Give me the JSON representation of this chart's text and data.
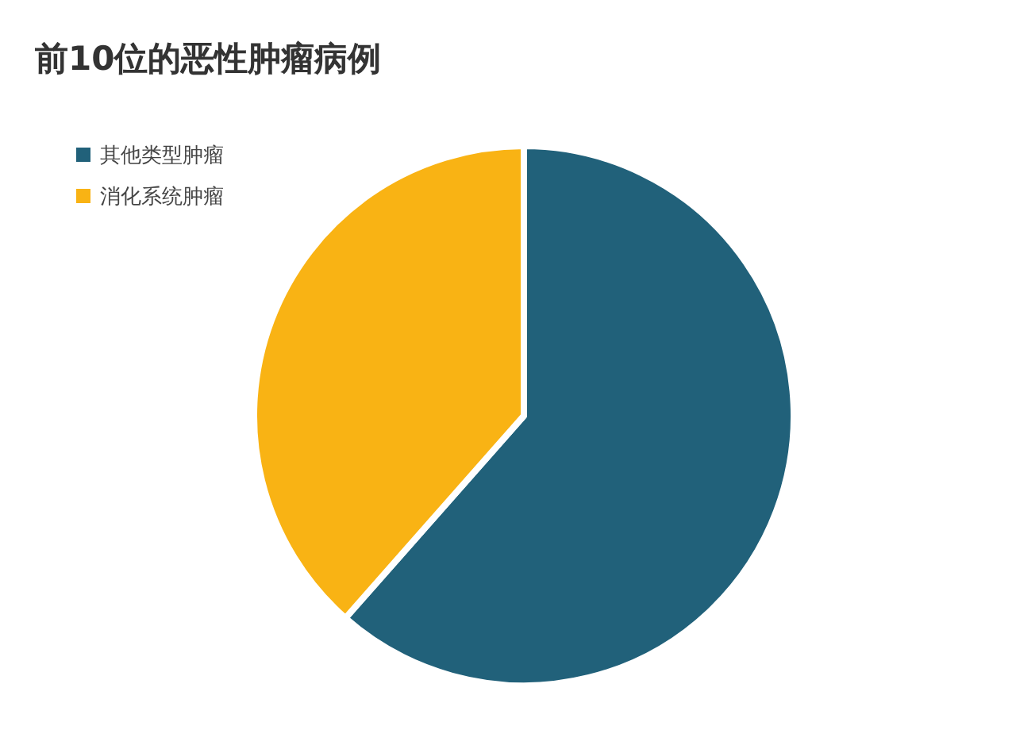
{
  "chart_data": {
    "type": "pie",
    "title": "前10位的恶性肿瘤病例",
    "categories": [
      "其他类型肿瘤",
      "消化系统肿瘤"
    ],
    "values": [
      61.5,
      38.5
    ],
    "colors": [
      "#21617a",
      "#f9b314"
    ],
    "legend": "top left"
  }
}
